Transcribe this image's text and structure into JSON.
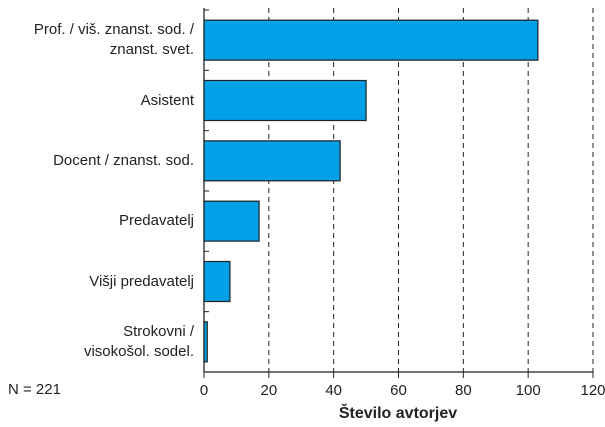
{
  "chart_data": {
    "type": "barh",
    "categories": [
      "Prof. / viš. znanst. sod. /\nznanst. svet.",
      "Asistent",
      "Docent / znanst. sod.",
      "Predavatelj",
      "Višji predavatelj",
      "Strokovni /\nvisokošol. sodel."
    ],
    "values": [
      103,
      50,
      42,
      17,
      8,
      1
    ],
    "color": "#00a0e6",
    "xlim": [
      0,
      120
    ],
    "xticks": [
      0,
      20,
      40,
      60,
      80,
      100,
      120
    ],
    "xlabel": "Število avtorjev",
    "annotation": "N = 221",
    "grid": true
  }
}
